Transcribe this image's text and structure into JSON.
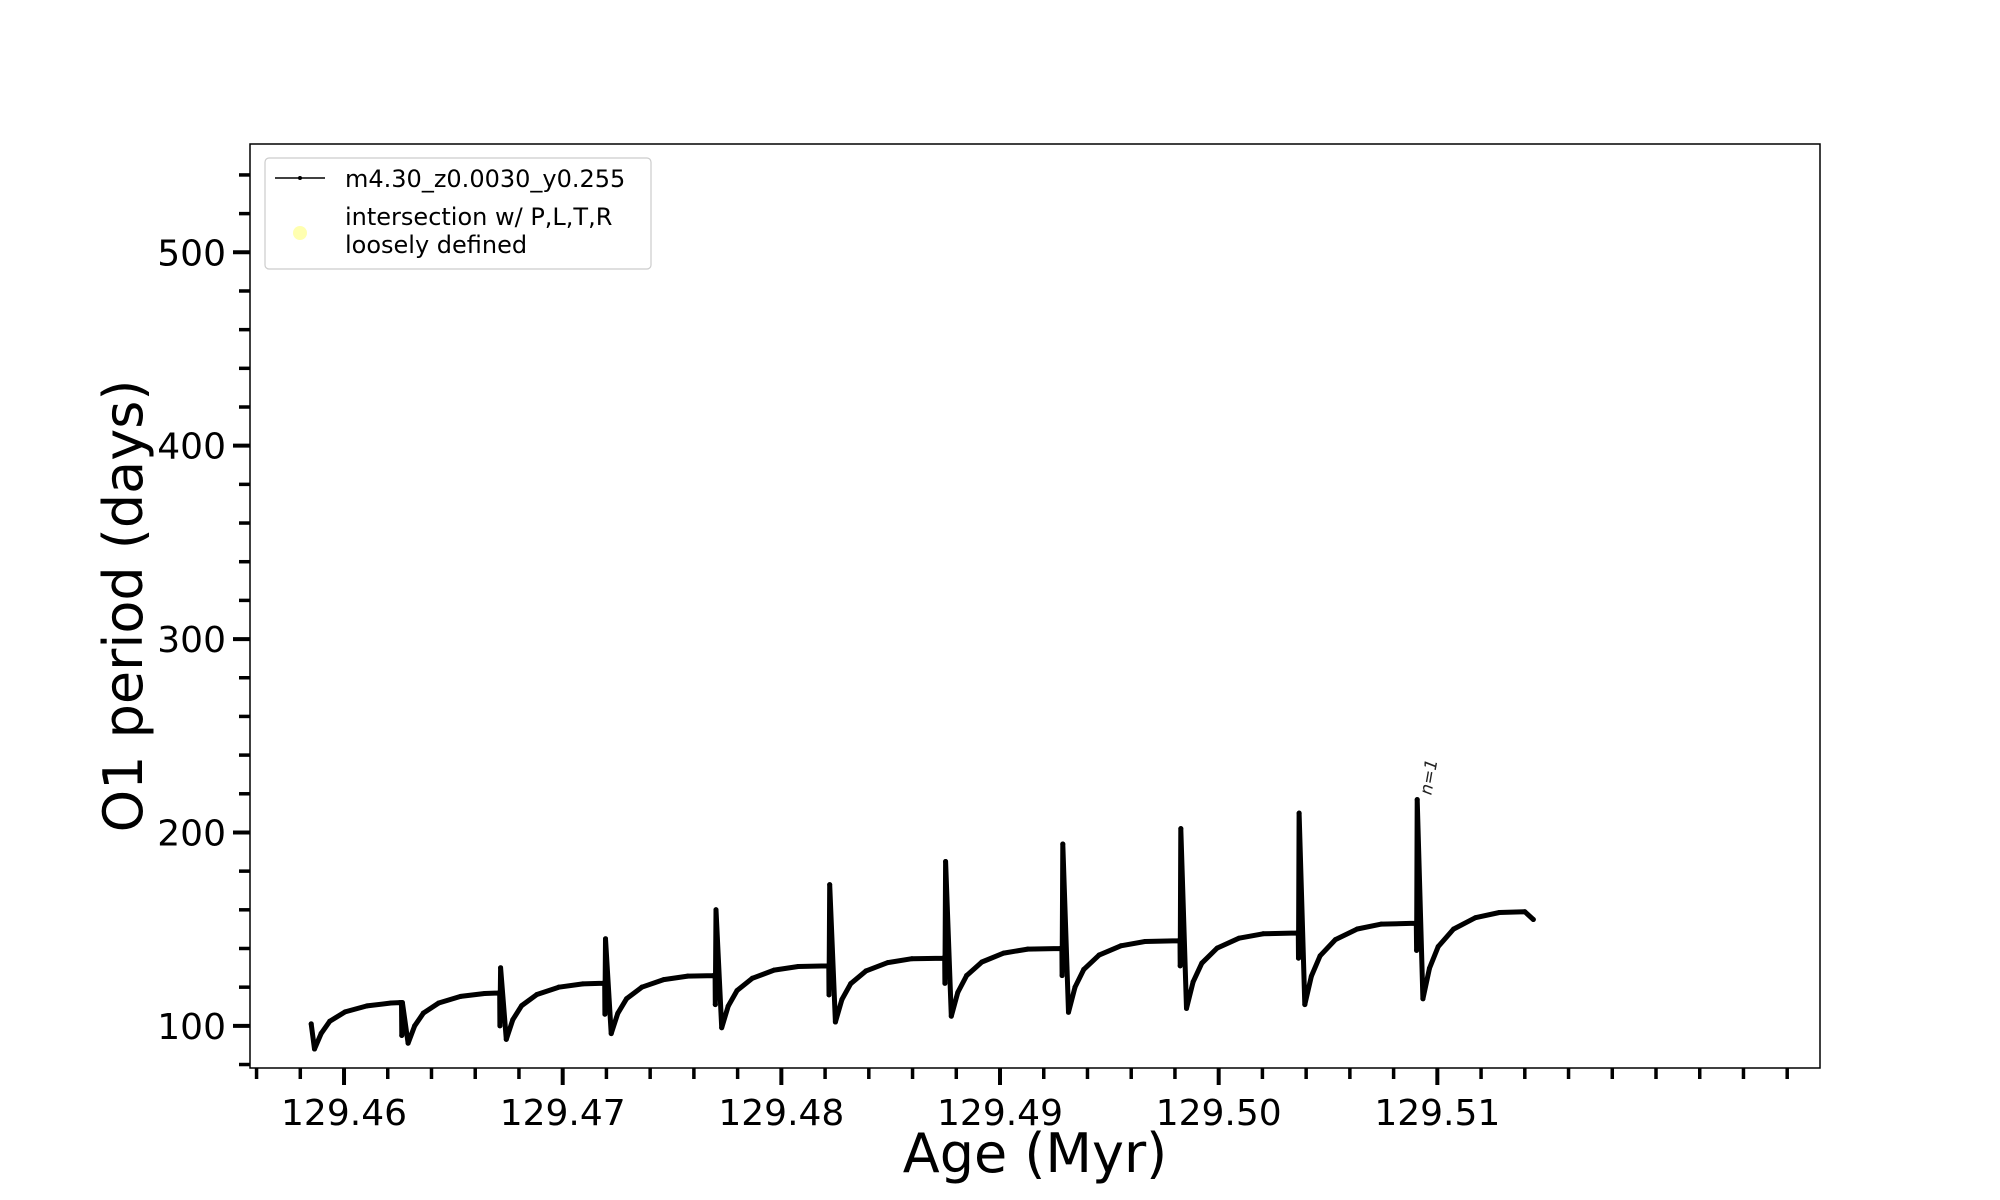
{
  "chart_data": {
    "type": "line",
    "title": "",
    "xlabel": "Age (Myr)",
    "ylabel": "O1 period (days)",
    "xlim": [
      129.4557,
      129.5275
    ],
    "ylim": [
      78.2,
      556
    ],
    "xticks": [
      129.46,
      129.47,
      129.48,
      129.49,
      129.5,
      129.51
    ],
    "xtick_labels": [
      "129.46",
      "129.47",
      "129.48",
      "129.49",
      "129.50",
      "129.51"
    ],
    "xminor_step": 0.002,
    "yticks": [
      100,
      200,
      300,
      400,
      500
    ],
    "ytick_labels": [
      "100",
      "200",
      "300",
      "400",
      "500"
    ],
    "yminor_step": 20,
    "grid": false,
    "legend": {
      "placement": "top-left",
      "entries": [
        {
          "label": "m4.30_z0.0030_y0.255",
          "marker": "line-dot",
          "color": "#000000"
        },
        {
          "label_lines": [
            "intersection w/ P,L,T,R",
            "loosely defined"
          ],
          "marker": "circle",
          "color": "#ffffb0"
        }
      ]
    },
    "annotations": [
      {
        "text": "n=1",
        "x": 129.50908,
        "y": 217
      }
    ],
    "series": [
      {
        "name": "m4.30_z0.0030_y0.255",
        "color": "#000000",
        "points": [
          [
            129.4585,
            101
          ],
          [
            129.45865,
            88
          ],
          [
            129.45895,
            96
          ],
          [
            129.45935,
            102.4
          ],
          [
            129.46005,
            107.2
          ],
          [
            129.46105,
            110.3
          ],
          [
            129.46215,
            111.8
          ],
          [
            129.46255,
            112
          ],
          [
            129.46263,
            112
          ],
          [
            129.46264,
            95
          ],
          [
            129.46267,
            112
          ],
          [
            129.46293,
            91
          ],
          [
            129.46323,
            100
          ],
          [
            129.46363,
            106.6
          ],
          [
            129.46433,
            111.8
          ],
          [
            129.46533,
            115.2
          ],
          [
            129.46643,
            116.7
          ],
          [
            129.46705,
            117
          ],
          [
            129.46712,
            117
          ],
          [
            129.46713,
            100
          ],
          [
            129.46716,
            130
          ],
          [
            129.46742,
            93
          ],
          [
            129.46772,
            103.2
          ],
          [
            129.46812,
            110.4
          ],
          [
            129.46882,
            116.2
          ],
          [
            129.46982,
            120
          ],
          [
            129.47092,
            121.7
          ],
          [
            129.47185,
            122
          ],
          [
            129.47192,
            122
          ],
          [
            129.47193,
            106
          ],
          [
            129.47196,
            145
          ],
          [
            129.47222,
            96
          ],
          [
            129.47252,
            106.5
          ],
          [
            129.47292,
            114
          ],
          [
            129.47362,
            120
          ],
          [
            129.47462,
            123.9
          ],
          [
            129.47572,
            125.7
          ],
          [
            129.4769,
            126
          ],
          [
            129.47697,
            126
          ],
          [
            129.47698,
            111
          ],
          [
            129.47701,
            160
          ],
          [
            129.47727,
            99
          ],
          [
            129.47757,
            110.2
          ],
          [
            129.47797,
            118.2
          ],
          [
            129.47867,
            124.6
          ],
          [
            129.47967,
            128.8
          ],
          [
            129.48077,
            130.7
          ],
          [
            129.4821,
            131
          ],
          [
            129.48217,
            131
          ],
          [
            129.48218,
            116
          ],
          [
            129.48221,
            173
          ],
          [
            129.48247,
            102
          ],
          [
            129.48277,
            113.6
          ],
          [
            129.48317,
            121.8
          ],
          [
            129.48387,
            128.4
          ],
          [
            129.48487,
            132.7
          ],
          [
            129.48597,
            134.7
          ],
          [
            129.4874,
            135
          ],
          [
            129.48747,
            135
          ],
          [
            129.48748,
            122
          ],
          [
            129.48751,
            185
          ],
          [
            129.48777,
            105
          ],
          [
            129.48807,
            117.3
          ],
          [
            129.48847,
            126
          ],
          [
            129.48917,
            133
          ],
          [
            129.49017,
            137.6
          ],
          [
            129.49127,
            139.7
          ],
          [
            129.49276,
            140
          ],
          [
            129.49283,
            140
          ],
          [
            129.49284,
            126
          ],
          [
            129.49287,
            194
          ],
          [
            129.49313,
            107
          ],
          [
            129.49343,
            120
          ],
          [
            129.49383,
            129.2
          ],
          [
            129.49453,
            136.6
          ],
          [
            129.49553,
            141.4
          ],
          [
            129.49663,
            143.6
          ],
          [
            129.49816,
            144
          ],
          [
            129.49823,
            144
          ],
          [
            129.49824,
            131
          ],
          [
            129.49827,
            202
          ],
          [
            129.49853,
            109
          ],
          [
            129.49883,
            122.7
          ],
          [
            129.49923,
            132.4
          ],
          [
            129.49993,
            140.2
          ],
          [
            129.50093,
            145.3
          ],
          [
            129.50203,
            147.6
          ],
          [
            129.50357,
            148
          ],
          [
            129.50364,
            148
          ],
          [
            129.50365,
            135
          ],
          [
            129.50368,
            210
          ],
          [
            129.50394,
            111
          ],
          [
            129.50424,
            125.7
          ],
          [
            129.50464,
            136.2
          ],
          [
            129.50534,
            144.6
          ],
          [
            129.50634,
            150.1
          ],
          [
            129.50744,
            152.6
          ],
          [
            129.50897,
            153
          ],
          [
            129.50904,
            153
          ],
          [
            129.50905,
            139
          ],
          [
            129.50908,
            217
          ],
          [
            129.50934,
            114
          ],
          [
            129.50964,
            129.8
          ],
          [
            129.51004,
            141
          ],
          [
            129.51074,
            150
          ],
          [
            129.51174,
            155.9
          ],
          [
            129.51284,
            158.6
          ],
          [
            129.514,
            159
          ],
          [
            129.51439,
            155
          ]
        ]
      }
    ]
  }
}
